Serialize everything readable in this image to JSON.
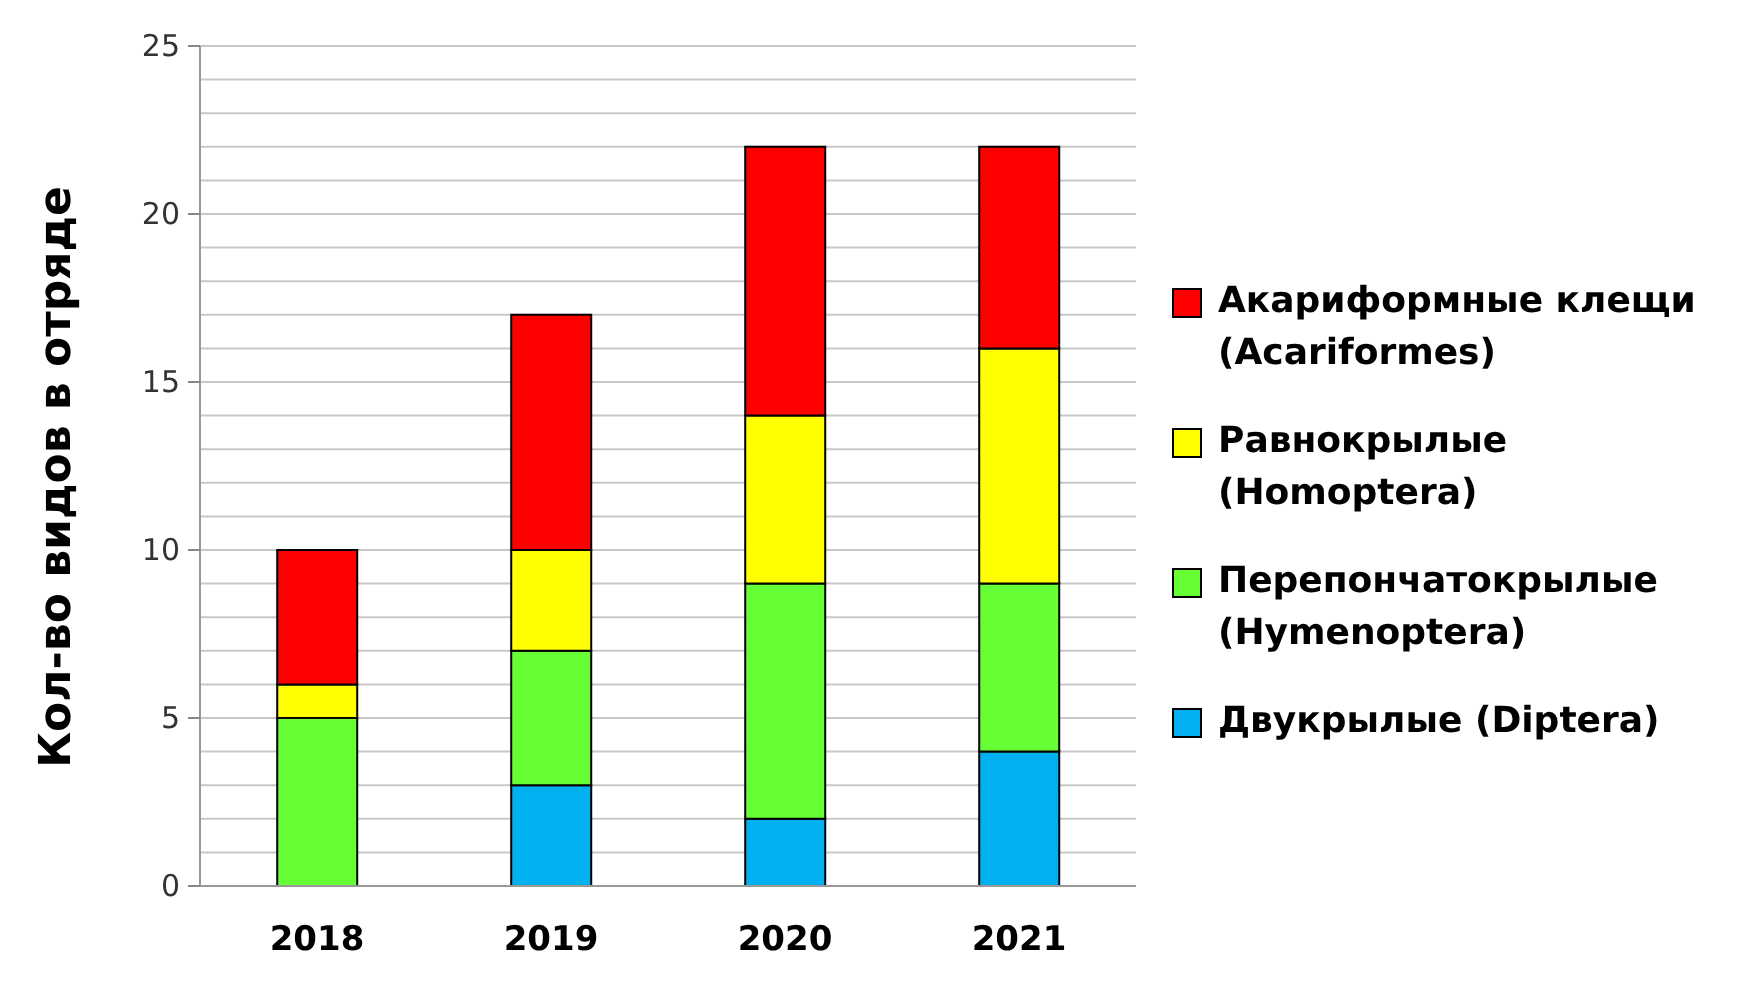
{
  "chart_data": {
    "type": "bar",
    "stacked": true,
    "ylabel": "Кол-во видов в отряде",
    "categories": [
      "2018",
      "2019",
      "2020",
      "2021"
    ],
    "series": [
      {
        "name": "Двукрылые (Diptera)",
        "color": "#00b0f0",
        "values": [
          0,
          3,
          2,
          4
        ]
      },
      {
        "name": "Перепончатокрылые (Hymenoptera)",
        "color": "#66ff33",
        "values": [
          5,
          4,
          7,
          5
        ]
      },
      {
        "name": "Равнокрылые (Homoptera)",
        "color": "#ffff00",
        "values": [
          1,
          3,
          5,
          7
        ]
      },
      {
        "name": "Акариформные клещи (Acariformes)",
        "color": "#ff0000",
        "values": [
          4,
          7,
          8,
          6
        ]
      }
    ],
    "ylim": [
      0,
      25
    ],
    "yticks": [
      0,
      {
        "value": 1,
        "label": null
      },
      {
        "value": 2,
        "label": null
      },
      {
        "value": 3,
        "label": null
      },
      {
        "value": 4,
        "label": null
      },
      5,
      {
        "value": 6,
        "label": null
      },
      {
        "value": 7,
        "label": null
      },
      {
        "value": 8,
        "label": null
      },
      {
        "value": 9,
        "label": null
      },
      10,
      {
        "value": 11,
        "label": null
      },
      {
        "value": 12,
        "label": null
      },
      {
        "value": 13,
        "label": null
      },
      {
        "value": 14,
        "label": null
      },
      15,
      {
        "value": 16,
        "label": null
      },
      {
        "value": 17,
        "label": null
      },
      {
        "value": 18,
        "label": null
      },
      {
        "value": 19,
        "label": null
      },
      20,
      {
        "value": 21,
        "label": null
      },
      {
        "value": 22,
        "label": null
      },
      {
        "value": 23,
        "label": null
      },
      {
        "value": 24,
        "label": null
      },
      25
    ],
    "grid": "y",
    "legend": "right"
  }
}
